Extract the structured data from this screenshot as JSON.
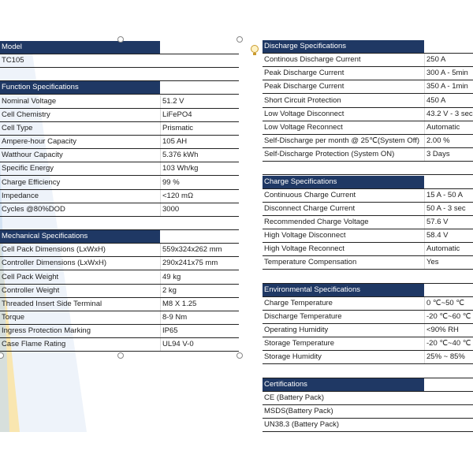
{
  "left": [
    {
      "title": "Model",
      "rows": [
        {
          "label": "TC105"
        }
      ]
    },
    {
      "title": "Function Specifications",
      "rows": [
        {
          "label": "Nominal Voltage",
          "value": "51.2 V"
        },
        {
          "label": "Cell Chemistry",
          "value": "LiFePO4"
        },
        {
          "label": "Cell Type",
          "value": "Prismatic"
        },
        {
          "label": "Ampere-hour Capacity",
          "value": "105 AH"
        },
        {
          "label": "Watthour Capacity",
          "value": " 5.376 kWh"
        },
        {
          "label": "Specific Energy",
          "value": "103 Wh/kg"
        },
        {
          "label": "Charge Efficiency",
          "value": "99 %"
        },
        {
          "label": "Impedance",
          "value": "<120 mΩ"
        },
        {
          "label": "Cycles @80%DOD",
          "value": "3000"
        }
      ]
    },
    {
      "title": "Mechanical Specifications",
      "rows": [
        {
          "label": "Cell Pack Dimensions (LxWxH)",
          "value": "559x324x262 mm"
        },
        {
          "label": "Controller Dimensions (LxWxH)",
          "value": "290x241x75 mm"
        },
        {
          "label": "Cell Pack Weight",
          "value": "49 kg"
        },
        {
          "label": "Controller Weight",
          "value": "2 kg"
        },
        {
          "label": "Threaded Insert Side Terminal",
          "value": "M8 X 1.25"
        },
        {
          "label": "Torque",
          "value": "8-9 Nm"
        },
        {
          "label": "Ingress Protection Marking",
          "value": "IP65"
        },
        {
          "label": "Case Flame Rating",
          "value": "UL94 V-0"
        }
      ]
    }
  ],
  "right": [
    {
      "title": "Discharge Specifications",
      "rows": [
        {
          "label": "Continous Discharge Current",
          "value": "250 A"
        },
        {
          "label": "Peak Discharge Current",
          "value": "300 A - 5min"
        },
        {
          "label": "Peak Discharge Current",
          "value": "350 A - 1min"
        },
        {
          "label": "Short Circuit Protection",
          "value": "450 A"
        },
        {
          "label": "Low Voltage Disconnect",
          "value": "43.2 V - 3 sec"
        },
        {
          "label": "Low Voltage Reconnect",
          "value": "Automatic"
        },
        {
          "label": "Self-Discharge per month @ 25℃(System Off)",
          "value": "2.00 %"
        },
        {
          "label": "Self-Discharge Protection (System ON)",
          "value": "3 Days"
        }
      ]
    },
    {
      "title": "Charge Specifications",
      "rows": [
        {
          "label": "Continuous Charge Current",
          "value": "15 A - 50 A"
        },
        {
          "label": "Disconnect Charge Current",
          "value": "50 A - 3 sec"
        },
        {
          "label": "Recommended Charge Voltage",
          "value": "57.6 V"
        },
        {
          "label": "High Voltage Disconnect",
          "value": "58.4 V"
        },
        {
          "label": "High Voltage Reconnect",
          "value": "Automatic"
        },
        {
          "label": "Temperature Compensation",
          "value": "Yes"
        }
      ]
    },
    {
      "title": "Environmental Specifications",
      "rows": [
        {
          "label": "Charge Temperature",
          "value": "0 ℃~50 ℃"
        },
        {
          "label": "Discharge Temperature",
          "value": "-20 ℃~60 ℃"
        },
        {
          "label": "Operating Humidity",
          "value": "<90% RH"
        },
        {
          "label": "Storage Temperature",
          "value": "-20 ℃~40 ℃"
        },
        {
          "label": "Storage Humidity",
          "value": "25% ~ 85%"
        }
      ]
    },
    {
      "title": "Certifications",
      "rows": [
        {
          "label": "CE (Battery Pack)"
        },
        {
          "label": "MSDS(Battery Pack)"
        },
        {
          "label": "UN38.3 (Battery Pack)"
        }
      ]
    }
  ]
}
